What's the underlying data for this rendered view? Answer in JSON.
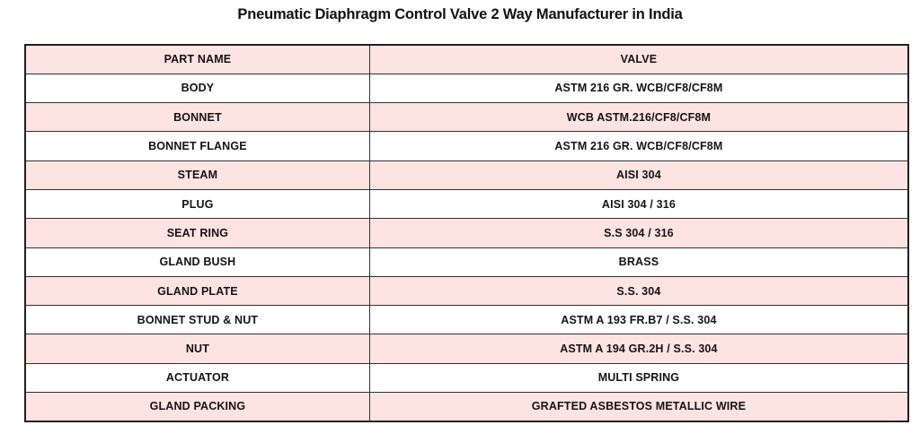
{
  "page": {
    "title": "Pneumatic Diaphragm Control Valve 2 Way Manufacturer in India"
  },
  "table": {
    "headers": {
      "part": "PART NAME",
      "valve": "VALVE"
    },
    "rows": [
      {
        "part": "BODY",
        "valve": "ASTM 216 GR. WCB/CF8/CF8M"
      },
      {
        "part": "BONNET",
        "valve": "WCB ASTM.216/CF8/CF8M"
      },
      {
        "part": "BONNET FLANGE",
        "valve": "ASTM 216 GR. WCB/CF8/CF8M"
      },
      {
        "part": "STEAM",
        "valve": "AISI 304"
      },
      {
        "part": "PLUG",
        "valve": "AISI 304 / 316"
      },
      {
        "part": "SEAT RING",
        "valve": "S.S 304 / 316"
      },
      {
        "part": "GLAND BUSH",
        "valve": "BRASS"
      },
      {
        "part": "GLAND PLATE",
        "valve": "S.S. 304"
      },
      {
        "part": "BONNET STUD & NUT",
        "valve": "ASTM A 193 FR.B7 / S.S. 304"
      },
      {
        "part": "NUT",
        "valve": "ASTM A 194 GR.2H / S.S. 304"
      },
      {
        "part": "ACTUATOR",
        "valve": "MULTI SPRING"
      },
      {
        "part": "GLAND PACKING",
        "valve": "GRAFTED ASBESTOS METALLIC WIRE"
      }
    ]
  },
  "colors": {
    "row_pink": "#fde3e2",
    "row_white": "#ffffff",
    "border_dark": "#241d1d",
    "border_inner": "#372f2f",
    "text": "#161313"
  }
}
